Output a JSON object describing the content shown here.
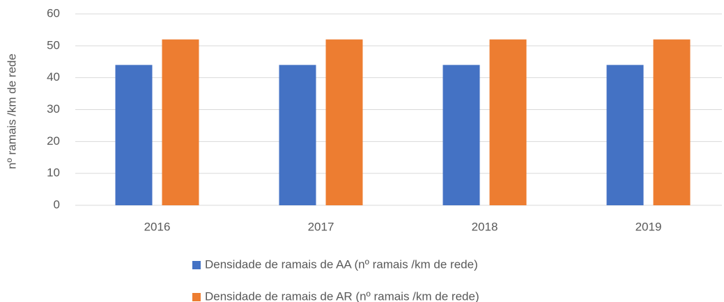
{
  "chart_data": {
    "type": "bar",
    "y_label": "nº ramais /km de rede",
    "categories": [
      "2016",
      "2017",
      "2018",
      "2019"
    ],
    "series": [
      {
        "name": "Densidade de ramais de AA (nº ramais /km de rede)",
        "color": "#4472c4",
        "values": [
          44,
          44,
          44,
          44
        ]
      },
      {
        "name": "Densidade de ramais de AR (nº ramais /km de rede)",
        "color": "#ed7d31",
        "values": [
          52,
          52,
          52,
          52
        ]
      }
    ],
    "ylim": [
      0,
      60
    ],
    "yticks": [
      0,
      10,
      20,
      30,
      40,
      50,
      60
    ],
    "grid": true,
    "legend": "bottom"
  }
}
